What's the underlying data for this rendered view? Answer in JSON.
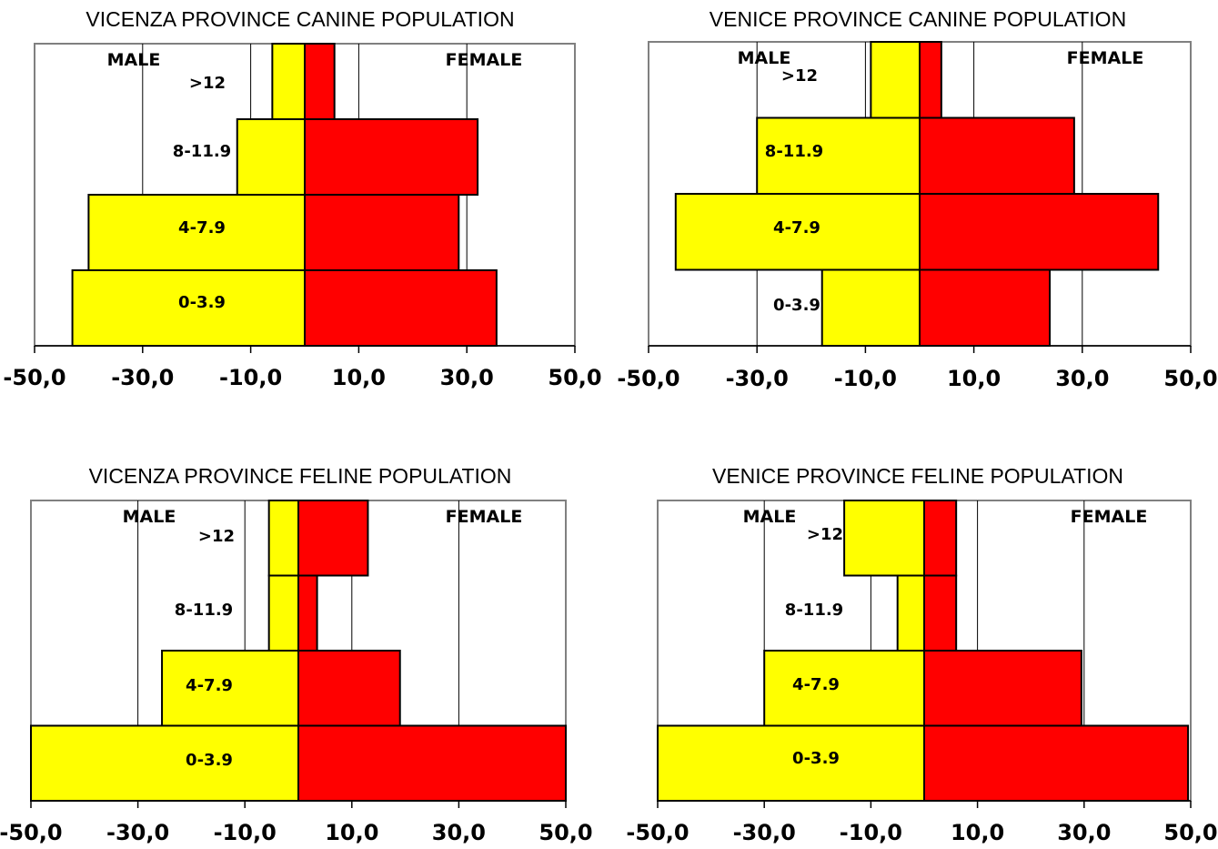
{
  "chart_data": [
    {
      "type": "bar",
      "title": "VICENZA PROVINCE CANINE POPULATION",
      "categories": [
        "0-3.9",
        "4-7.9",
        "8-11.9",
        ">12"
      ],
      "series": [
        {
          "name": "MALE",
          "values": [
            -43.0,
            -40.0,
            -12.5,
            -6.0
          ]
        },
        {
          "name": "FEMALE",
          "values": [
            35.5,
            28.5,
            32.0,
            5.5
          ]
        }
      ],
      "xlim": [
        -50,
        50
      ],
      "xticks": [
        "-50,0",
        "-30,0",
        "-10,0",
        "10,0",
        "30,0",
        "50,0"
      ],
      "gridlines": [
        -30,
        -10,
        10,
        30
      ],
      "colors": {
        "male": "#ffff00",
        "female": "#ff0000"
      }
    },
    {
      "type": "bar",
      "title": "VENICE PROVINCE CANINE POPULATION",
      "categories": [
        "0-3.9",
        "4-7.9",
        "8-11.9",
        ">12"
      ],
      "series": [
        {
          "name": "MALE",
          "values": [
            -18.0,
            -45.0,
            -30.0,
            -9.0
          ]
        },
        {
          "name": "FEMALE",
          "values": [
            24.0,
            44.0,
            28.5,
            4.0
          ]
        }
      ],
      "xlim": [
        -50,
        50
      ],
      "xticks": [
        "-50,0",
        "-30,0",
        "-10,0",
        "10,0",
        "30,0",
        "50,0"
      ],
      "gridlines": [
        -30,
        -10,
        10,
        30
      ],
      "colors": {
        "male": "#ffff00",
        "female": "#ff0000"
      }
    },
    {
      "type": "bar",
      "title": "VICENZA PROVINCE FELINE POPULATION",
      "categories": [
        "0-3.9",
        "4-7.9",
        "8-11.9",
        ">12"
      ],
      "series": [
        {
          "name": "MALE",
          "values": [
            -50.0,
            -25.5,
            -5.5,
            -5.5
          ]
        },
        {
          "name": "FEMALE",
          "values": [
            50.0,
            19.0,
            3.5,
            13.0
          ]
        }
      ],
      "xlim": [
        -50,
        50
      ],
      "xticks": [
        "-50,0",
        "-30,0",
        "-10,0",
        "10,0",
        "30,0",
        "50,0"
      ],
      "gridlines": [
        -30,
        -10,
        10,
        30
      ],
      "colors": {
        "male": "#ffff00",
        "female": "#ff0000"
      }
    },
    {
      "type": "bar",
      "title": "VENICE PROVINCE FELINE POPULATION",
      "categories": [
        "0-3.9",
        "4-7.9",
        "8-11.9",
        ">12"
      ],
      "series": [
        {
          "name": "MALE",
          "values": [
            -50.0,
            -30.0,
            -5.0,
            -15.0
          ]
        },
        {
          "name": "FEMALE",
          "values": [
            49.5,
            29.5,
            6.0,
            6.0
          ]
        }
      ],
      "xlim": [
        -50,
        50
      ],
      "xticks": [
        "-50,0",
        "-30,0",
        "-10,0",
        "10,0",
        "30,0",
        "50,0"
      ],
      "gridlines": [
        -30,
        -10,
        10,
        30
      ],
      "colors": {
        "male": "#ffff00",
        "female": "#ff0000"
      }
    }
  ]
}
